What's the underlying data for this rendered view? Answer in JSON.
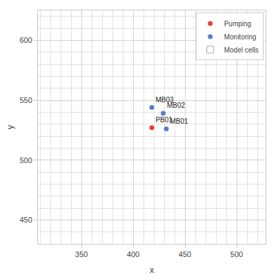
{
  "chart_data": {
    "type": "scatter",
    "xlabel": "x",
    "ylabel": "y",
    "xlim": [
      308,
      528
    ],
    "ylim": [
      430,
      625
    ],
    "xticks": [
      350,
      400,
      450,
      500
    ],
    "yticks": [
      450,
      500,
      550,
      600
    ],
    "grid": true,
    "legend": "upper right",
    "series": [
      {
        "name": "Pumping",
        "color": "#e8413a",
        "x": [
          418
        ],
        "y": [
          527
        ],
        "labels": [
          "PB01"
        ]
      },
      {
        "name": "Monitoring",
        "color": "#5b7ec9",
        "x": [
          432,
          429,
          418
        ],
        "y": [
          526,
          539,
          544
        ],
        "labels": [
          "MB01",
          "MB02",
          "MB03"
        ]
      },
      {
        "name": "Model cells",
        "type": "grid",
        "color": "#e0e0e0",
        "cell_size": 10
      }
    ]
  }
}
